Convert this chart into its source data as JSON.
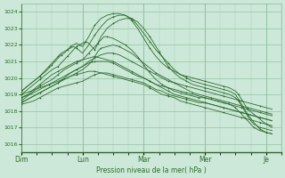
{
  "xlabel": "Pression niveau de la mer( hPa )",
  "background_color": "#cce8d8",
  "grid_color_major": "#88bb99",
  "grid_color_minor": "#aaccbb",
  "line_color": "#2d6b2d",
  "ylim": [
    1015.5,
    1024.5
  ],
  "yticks": [
    1016,
    1017,
    1018,
    1019,
    1020,
    1021,
    1022,
    1023,
    1024
  ],
  "xlim": [
    0,
    4.17
  ],
  "xtick_positions": [
    0.0,
    1.0,
    2.0,
    3.0,
    4.0
  ],
  "xtick_labels": [
    "Dim",
    "Lun",
    "Mar",
    "Mer",
    "Je"
  ],
  "lines": [
    {
      "x": [
        0.0,
        0.1,
        0.2,
        0.3,
        0.4,
        0.5,
        0.6,
        0.7,
        0.8,
        0.9,
        1.0,
        1.1,
        1.2,
        1.3,
        1.4,
        1.5,
        1.6,
        1.7,
        1.8,
        1.9,
        2.0,
        2.1,
        2.2,
        2.3,
        2.4,
        2.5,
        2.6,
        2.7,
        2.8,
        2.9,
        3.0,
        3.1,
        3.2,
        3.3,
        3.4,
        3.5,
        3.6,
        3.7,
        3.8,
        3.9,
        4.0,
        4.1
      ],
      "y": [
        1018.4,
        1018.5,
        1018.6,
        1018.8,
        1019.0,
        1019.2,
        1019.4,
        1019.5,
        1019.6,
        1019.7,
        1019.8,
        1020.0,
        1020.2,
        1020.3,
        1020.3,
        1020.2,
        1020.1,
        1020.0,
        1019.9,
        1019.8,
        1019.7,
        1019.5,
        1019.3,
        1019.2,
        1019.0,
        1018.9,
        1018.8,
        1018.7,
        1018.6,
        1018.5,
        1018.5,
        1018.4,
        1018.3,
        1018.2,
        1018.1,
        1018.0,
        1017.9,
        1017.8,
        1017.7,
        1017.6,
        1017.5,
        1017.4
      ]
    },
    {
      "x": [
        0.0,
        0.1,
        0.2,
        0.3,
        0.4,
        0.5,
        0.6,
        0.7,
        0.8,
        0.9,
        1.0,
        1.1,
        1.2,
        1.3,
        1.4,
        1.5,
        1.6,
        1.7,
        1.8,
        1.9,
        2.0,
        2.1,
        2.2,
        2.3,
        2.4,
        2.5,
        2.6,
        2.7,
        2.8,
        2.9,
        3.0,
        3.1,
        3.2,
        3.3,
        3.4,
        3.5,
        3.6,
        3.7,
        3.8,
        3.9,
        4.0,
        4.1
      ],
      "y": [
        1018.5,
        1018.7,
        1018.9,
        1019.1,
        1019.3,
        1019.5,
        1019.7,
        1019.9,
        1020.1,
        1020.2,
        1020.3,
        1020.4,
        1020.4,
        1020.3,
        1020.2,
        1020.1,
        1020.0,
        1019.9,
        1019.8,
        1019.7,
        1019.6,
        1019.4,
        1019.2,
        1019.0,
        1018.9,
        1018.8,
        1018.6,
        1018.5,
        1018.4,
        1018.3,
        1018.2,
        1018.1,
        1018.0,
        1017.9,
        1017.8,
        1017.7,
        1017.6,
        1017.5,
        1017.4,
        1017.3,
        1017.2,
        1017.1
      ]
    },
    {
      "x": [
        0.0,
        0.1,
        0.2,
        0.3,
        0.4,
        0.5,
        0.6,
        0.7,
        0.8,
        0.9,
        1.0,
        1.1,
        1.2,
        1.3,
        1.4,
        1.5,
        1.6,
        1.7,
        1.8,
        1.9,
        2.0,
        2.1,
        2.2,
        2.3,
        2.4,
        2.5,
        2.6,
        2.7,
        2.8,
        2.9,
        3.0,
        3.1,
        3.2,
        3.3,
        3.4,
        3.5,
        3.6,
        3.7,
        3.8,
        3.9,
        4.0,
        4.1
      ],
      "y": [
        1018.5,
        1018.7,
        1018.9,
        1019.1,
        1019.3,
        1019.5,
        1019.7,
        1020.0,
        1020.3,
        1020.5,
        1020.7,
        1020.9,
        1021.0,
        1021.0,
        1021.0,
        1020.9,
        1020.7,
        1020.5,
        1020.3,
        1020.1,
        1020.0,
        1019.8,
        1019.6,
        1019.4,
        1019.2,
        1019.0,
        1018.9,
        1018.8,
        1018.7,
        1018.6,
        1018.5,
        1018.4,
        1018.3,
        1018.2,
        1018.1,
        1018.0,
        1017.9,
        1017.8,
        1017.7,
        1017.6,
        1017.5,
        1017.4
      ]
    },
    {
      "x": [
        0.0,
        0.1,
        0.2,
        0.3,
        0.4,
        0.5,
        0.6,
        0.7,
        0.8,
        0.9,
        1.0,
        1.1,
        1.2,
        1.3,
        1.4,
        1.5,
        1.6,
        1.7,
        1.8,
        1.9,
        2.0,
        2.1,
        2.2,
        2.3,
        2.4,
        2.5,
        2.6,
        2.7,
        2.8,
        2.9,
        3.0,
        3.1,
        3.2,
        3.3,
        3.4,
        3.5,
        3.6,
        3.7,
        3.8,
        3.9,
        4.0,
        4.1
      ],
      "y": [
        1018.6,
        1018.9,
        1019.2,
        1019.5,
        1019.7,
        1019.9,
        1020.2,
        1020.5,
        1020.7,
        1020.9,
        1021.1,
        1021.2,
        1021.3,
        1021.2,
        1021.1,
        1021.0,
        1020.8,
        1020.6,
        1020.4,
        1020.2,
        1020.0,
        1019.8,
        1019.6,
        1019.5,
        1019.4,
        1019.3,
        1019.2,
        1019.1,
        1019.0,
        1018.9,
        1018.8,
        1018.7,
        1018.6,
        1018.5,
        1018.4,
        1018.3,
        1018.2,
        1018.1,
        1018.0,
        1017.9,
        1017.8,
        1017.7
      ]
    },
    {
      "x": [
        0.0,
        0.15,
        0.3,
        0.45,
        0.6,
        0.75,
        0.9,
        1.0,
        1.1,
        1.2,
        1.3,
        1.4,
        1.5,
        1.6,
        1.7,
        1.8,
        1.9,
        2.0,
        2.1,
        2.2,
        2.3,
        2.4,
        2.5,
        2.6,
        2.7,
        2.8,
        2.9,
        3.0,
        3.1,
        3.2,
        3.3,
        3.4,
        3.5,
        3.6,
        3.7,
        3.8,
        3.9,
        4.0,
        4.1
      ],
      "y": [
        1018.8,
        1019.0,
        1019.3,
        1019.6,
        1019.9,
        1020.2,
        1020.5,
        1020.7,
        1021.0,
        1021.2,
        1021.4,
        1021.5,
        1021.5,
        1021.4,
        1021.2,
        1021.0,
        1020.8,
        1020.6,
        1020.4,
        1020.2,
        1020.0,
        1019.8,
        1019.7,
        1019.6,
        1019.5,
        1019.4,
        1019.3,
        1019.2,
        1019.1,
        1019.0,
        1018.9,
        1018.8,
        1018.7,
        1018.6,
        1018.5,
        1018.4,
        1018.3,
        1018.2,
        1018.1
      ]
    },
    {
      "x": [
        0.0,
        0.15,
        0.3,
        0.45,
        0.6,
        0.75,
        0.9,
        1.0,
        1.1,
        1.15,
        1.2,
        1.25,
        1.3,
        1.4,
        1.5,
        1.6,
        1.7,
        1.8,
        1.9,
        2.0,
        2.1,
        2.2,
        2.3,
        2.4,
        2.5,
        2.6,
        2.7,
        2.8,
        2.9,
        3.0,
        3.1,
        3.2,
        3.3,
        3.4,
        3.5,
        3.6,
        3.7,
        3.8,
        3.9,
        4.0,
        4.1
      ],
      "y": [
        1019.0,
        1019.2,
        1019.4,
        1019.6,
        1019.8,
        1020.0,
        1020.3,
        1020.5,
        1020.8,
        1021.0,
        1021.3,
        1021.6,
        1021.8,
        1021.9,
        1022.0,
        1021.9,
        1021.7,
        1021.5,
        1021.2,
        1020.9,
        1020.6,
        1020.3,
        1020.1,
        1019.9,
        1019.7,
        1019.5,
        1019.3,
        1019.1,
        1019.0,
        1018.9,
        1018.8,
        1018.7,
        1018.6,
        1018.5,
        1018.4,
        1018.3,
        1018.2,
        1018.1,
        1018.0,
        1017.9,
        1017.8
      ]
    },
    {
      "x": [
        0.0,
        0.1,
        0.2,
        0.3,
        0.4,
        0.5,
        0.6,
        0.7,
        0.8,
        0.9,
        1.0,
        1.05,
        1.1,
        1.15,
        1.2,
        1.25,
        1.3,
        1.35,
        1.4,
        1.5,
        1.6,
        1.7,
        1.8,
        1.9,
        2.0,
        2.1,
        2.2,
        2.3,
        2.4,
        2.5,
        2.6,
        2.7,
        2.8,
        2.9,
        3.0,
        3.1,
        3.2,
        3.3,
        3.4,
        3.5,
        3.55,
        3.6,
        3.65,
        3.7,
        3.75,
        3.8,
        3.85,
        3.9,
        4.0,
        4.1
      ],
      "y": [
        1018.8,
        1019.0,
        1019.3,
        1019.6,
        1019.9,
        1020.2,
        1020.4,
        1020.6,
        1020.8,
        1021.0,
        1021.1,
        1021.3,
        1021.5,
        1021.7,
        1021.9,
        1022.1,
        1022.3,
        1022.5,
        1022.5,
        1022.4,
        1022.2,
        1022.0,
        1021.7,
        1021.3,
        1020.8,
        1020.3,
        1019.9,
        1019.6,
        1019.4,
        1019.2,
        1019.1,
        1019.0,
        1018.9,
        1018.8,
        1018.8,
        1018.7,
        1018.6,
        1018.5,
        1018.4,
        1018.2,
        1018.0,
        1017.8,
        1017.6,
        1017.4,
        1017.2,
        1017.0,
        1016.9,
        1016.8,
        1016.7,
        1016.6
      ]
    },
    {
      "x": [
        0.0,
        0.1,
        0.2,
        0.3,
        0.4,
        0.5,
        0.6,
        0.65,
        0.7,
        0.75,
        0.8,
        0.85,
        0.9,
        0.95,
        1.0,
        1.05,
        1.1,
        1.15,
        1.2,
        1.3,
        1.4,
        1.5,
        1.6,
        1.7,
        1.8,
        1.9,
        2.0,
        2.1,
        2.15,
        2.2,
        2.25,
        2.3,
        2.35,
        2.4,
        2.5,
        2.6,
        2.7,
        2.8,
        2.9,
        3.0,
        3.1,
        3.2,
        3.3,
        3.4,
        3.5,
        3.55,
        3.6,
        3.65,
        3.7,
        3.75,
        3.8,
        3.9,
        4.0,
        4.1
      ],
      "y": [
        1019.0,
        1019.3,
        1019.6,
        1019.9,
        1020.2,
        1020.5,
        1020.7,
        1020.9,
        1021.1,
        1021.3,
        1021.5,
        1021.7,
        1021.9,
        1022.0,
        1022.1,
        1022.2,
        1022.1,
        1021.9,
        1021.7,
        1022.5,
        1023.0,
        1023.3,
        1023.5,
        1023.6,
        1023.6,
        1023.4,
        1023.0,
        1022.5,
        1022.2,
        1021.9,
        1021.6,
        1021.3,
        1021.0,
        1020.7,
        1020.3,
        1020.0,
        1019.8,
        1019.6,
        1019.5,
        1019.4,
        1019.3,
        1019.2,
        1019.1,
        1019.0,
        1018.8,
        1018.6,
        1018.3,
        1018.0,
        1017.7,
        1017.4,
        1017.2,
        1017.0,
        1016.9,
        1016.8
      ]
    },
    {
      "x": [
        0.0,
        0.1,
        0.2,
        0.3,
        0.4,
        0.45,
        0.5,
        0.55,
        0.6,
        0.65,
        0.7,
        0.75,
        0.8,
        0.85,
        0.9,
        0.95,
        1.0,
        1.1,
        1.2,
        1.3,
        1.4,
        1.5,
        1.6,
        1.7,
        1.8,
        1.9,
        2.0,
        2.1,
        2.2,
        2.3,
        2.4,
        2.5,
        2.6,
        2.7,
        2.8,
        2.9,
        3.0,
        3.1,
        3.2,
        3.3,
        3.4,
        3.5,
        3.55,
        3.6,
        3.65,
        3.7,
        3.8,
        3.9,
        4.0,
        4.1
      ],
      "y": [
        1019.2,
        1019.5,
        1019.8,
        1020.1,
        1020.4,
        1020.6,
        1020.8,
        1021.0,
        1021.2,
        1021.4,
        1021.5,
        1021.7,
        1021.9,
        1022.0,
        1022.1,
        1022.0,
        1021.9,
        1022.5,
        1023.2,
        1023.6,
        1023.8,
        1023.9,
        1023.9,
        1023.8,
        1023.5,
        1023.0,
        1022.4,
        1021.8,
        1021.3,
        1020.9,
        1020.6,
        1020.4,
        1020.2,
        1020.1,
        1020.0,
        1019.9,
        1019.8,
        1019.7,
        1019.6,
        1019.5,
        1019.4,
        1019.2,
        1019.0,
        1018.7,
        1018.4,
        1018.1,
        1017.8,
        1017.5,
        1017.2,
        1017.0
      ]
    },
    {
      "x": [
        0.0,
        0.1,
        0.2,
        0.3,
        0.35,
        0.4,
        0.45,
        0.5,
        0.55,
        0.6,
        0.65,
        0.7,
        0.75,
        0.8,
        0.85,
        0.9,
        1.0,
        1.1,
        1.2,
        1.3,
        1.4,
        1.5,
        1.6,
        1.7,
        1.8,
        1.9,
        2.0,
        2.1,
        2.2,
        2.3,
        2.4,
        2.5,
        2.6,
        2.7,
        2.8,
        2.9,
        3.0,
        3.1,
        3.2,
        3.3,
        3.4,
        3.5,
        3.55,
        3.6,
        3.65,
        3.7,
        3.8,
        3.85,
        3.9,
        4.0,
        4.1
      ],
      "y": [
        1019.2,
        1019.5,
        1019.8,
        1020.1,
        1020.3,
        1020.5,
        1020.7,
        1020.9,
        1021.1,
        1021.3,
        1021.5,
        1021.6,
        1021.7,
        1021.8,
        1021.9,
        1021.8,
        1021.5,
        1022.0,
        1022.6,
        1023.1,
        1023.5,
        1023.7,
        1023.8,
        1023.8,
        1023.6,
        1023.2,
        1022.7,
        1022.2,
        1021.7,
        1021.3,
        1020.9,
        1020.5,
        1020.2,
        1020.0,
        1019.8,
        1019.7,
        1019.6,
        1019.5,
        1019.4,
        1019.3,
        1019.2,
        1019.0,
        1018.7,
        1018.4,
        1018.1,
        1017.8,
        1017.3,
        1017.1,
        1016.9,
        1016.7,
        1016.6
      ]
    }
  ],
  "figsize": [
    3.2,
    2.0
  ],
  "dpi": 100
}
